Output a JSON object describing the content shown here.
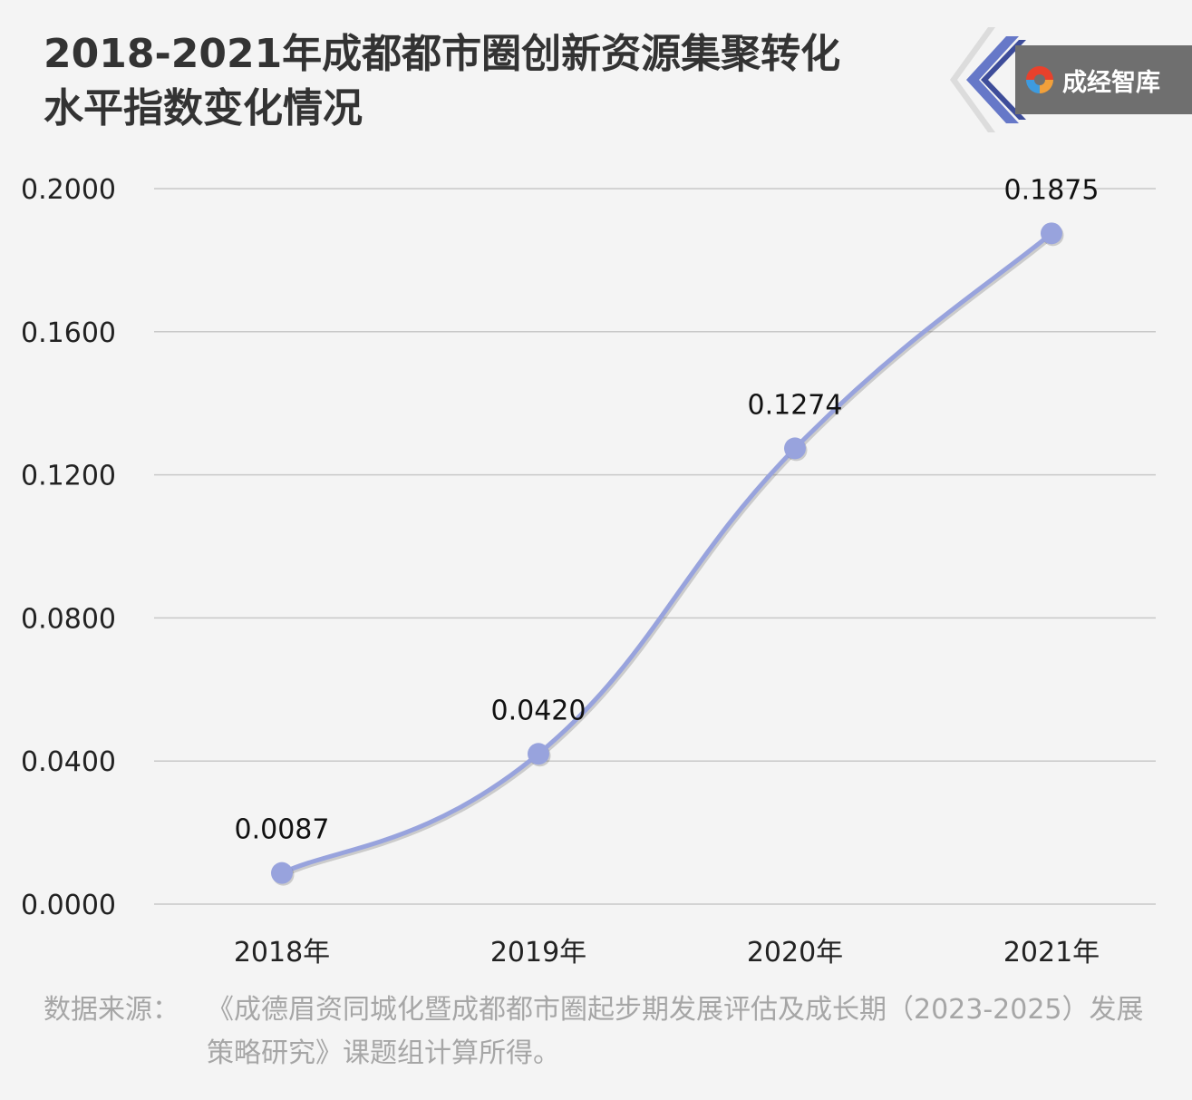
{
  "title": {
    "line1": "2018-2021年成都都市圈创新资源集聚转化",
    "line2": "水平指数变化情况"
  },
  "brand": {
    "text": "成经智库",
    "icon": "brand-logo-icon"
  },
  "chart_data": {
    "type": "line",
    "title": "2018-2021年成都都市圈创新资源集聚转化水平指数变化情况",
    "categories": [
      "2018年",
      "2019年",
      "2020年",
      "2021年"
    ],
    "series": [
      {
        "values": [
          0.0087,
          0.042,
          0.1274,
          0.1875
        ],
        "color": "#98a3dd"
      }
    ],
    "data_labels": [
      "0.0087",
      "0.0420",
      "0.1274",
      "0.1875"
    ],
    "yticks": [
      "0.0000",
      "0.0400",
      "0.0800",
      "0.1200",
      "0.1600",
      "0.2000"
    ],
    "ylim": [
      0,
      0.2
    ],
    "xlabel": "",
    "ylabel": "",
    "grid": true,
    "legend": "none",
    "smooth": true
  },
  "source": {
    "label": "数据来源：",
    "text": "《成德眉资同城化暨成都都市圈起步期发展评估及成长期（2023-2025）发展策略研究》课题组计算所得。"
  },
  "colors": {
    "background": "#f4f4f4",
    "title": "#333333",
    "line": "#98a3dd",
    "grid": "#c8c8c8",
    "source_text": "#a6a6a6",
    "brand_box": "#6f6f6f",
    "brand_chevron": "#6678c8"
  }
}
